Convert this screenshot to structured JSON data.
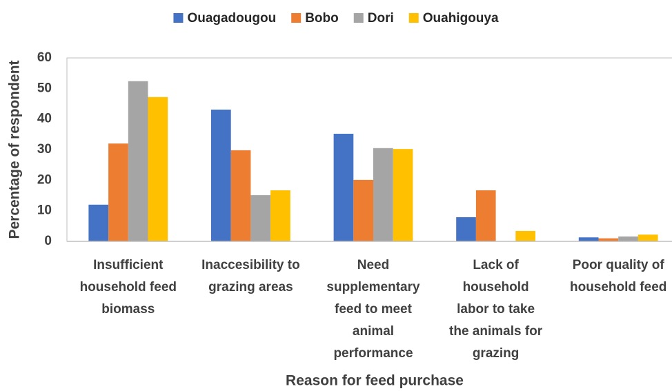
{
  "chart_data": {
    "type": "bar",
    "x_label": "Reason for feed purchase",
    "y_label": "Percentage of respondent",
    "categories": [
      "Insufficient\nhousehold feed\nbiomass",
      "Inaccesibility to\ngrazing areas",
      "Need\nsupplementary\nfeed to meet\nanimal\nperformance",
      "Lack of\nhousehold\nlabor to take\nthe animals for\ngrazing",
      "Poor quality of\nhousehold feed"
    ],
    "series": [
      {
        "name": "Ouagadougou",
        "color": "#4472c4",
        "values": [
          12.0,
          43.1,
          35.2,
          7.9,
          1.3
        ]
      },
      {
        "name": "Bobo",
        "color": "#ed7d31",
        "values": [
          32.0,
          29.8,
          20.1,
          16.7,
          1.0
        ]
      },
      {
        "name": "Dori",
        "color": "#a5a5a5",
        "values": [
          52.4,
          15.1,
          30.5,
          0,
          1.6
        ]
      },
      {
        "name": "Ouahigouya",
        "color": "#ffc000",
        "values": [
          47.2,
          16.7,
          30.2,
          3.4,
          2.2
        ]
      }
    ],
    "ylim": [
      0,
      60
    ],
    "yticks": [
      0,
      10,
      20,
      30,
      40,
      50,
      60
    ],
    "grid": false,
    "legend": "top"
  }
}
